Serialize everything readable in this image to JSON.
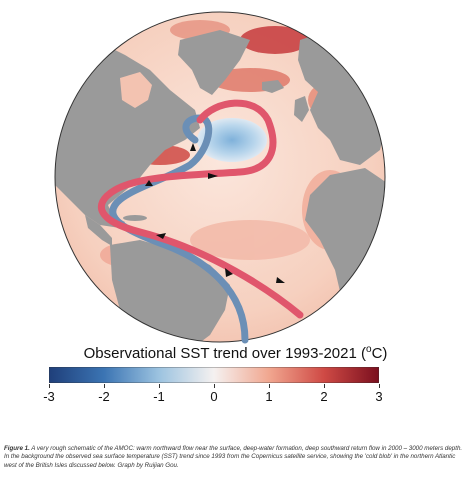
{
  "map": {
    "region": "North Atlantic (orthographic view)",
    "colors": {
      "land": "#9a9a9a",
      "ocean_warm_light": "#f6d6c8",
      "ocean_warm": "#e88b78",
      "ocean_hot": "#b52a35",
      "cold_blob": "#a9cbe6",
      "surface_current": "#e0566c",
      "deep_current": "#6b8fb6",
      "arrow": "#111111"
    },
    "currents": [
      {
        "name": "warm northward surface flow",
        "color_key": "surface_current"
      },
      {
        "name": "deep southward return flow",
        "color_key": "deep_current"
      }
    ]
  },
  "colorbar": {
    "title_main": "Observational SST trend over 1993-2021 (",
    "title_unit_sup": "o",
    "title_unit": "C)",
    "ticks": [
      "-3",
      "-2",
      "-1",
      "0",
      "1",
      "2",
      "3"
    ],
    "range": [
      -3,
      3
    ],
    "colormap": [
      "#1f3f7a",
      "#3b74b3",
      "#9cc3e0",
      "#f5f1f0",
      "#f1a790",
      "#cf4a45",
      "#7a0f1e"
    ]
  },
  "caption": {
    "label": "Figure 1.",
    "text": " A very rough schematic of the AMOC: warm northward flow near the surface, deep-water formation, deep southward return flow in 2000 – 3000 meters depth. In the background the observed sea surface temperature (SST) trend since 1993 from the Copernicus satellite service, showing the 'cold blob' in the northern Atlantic west of the British Isles discussed below. Graph by Ruijian Gou."
  }
}
